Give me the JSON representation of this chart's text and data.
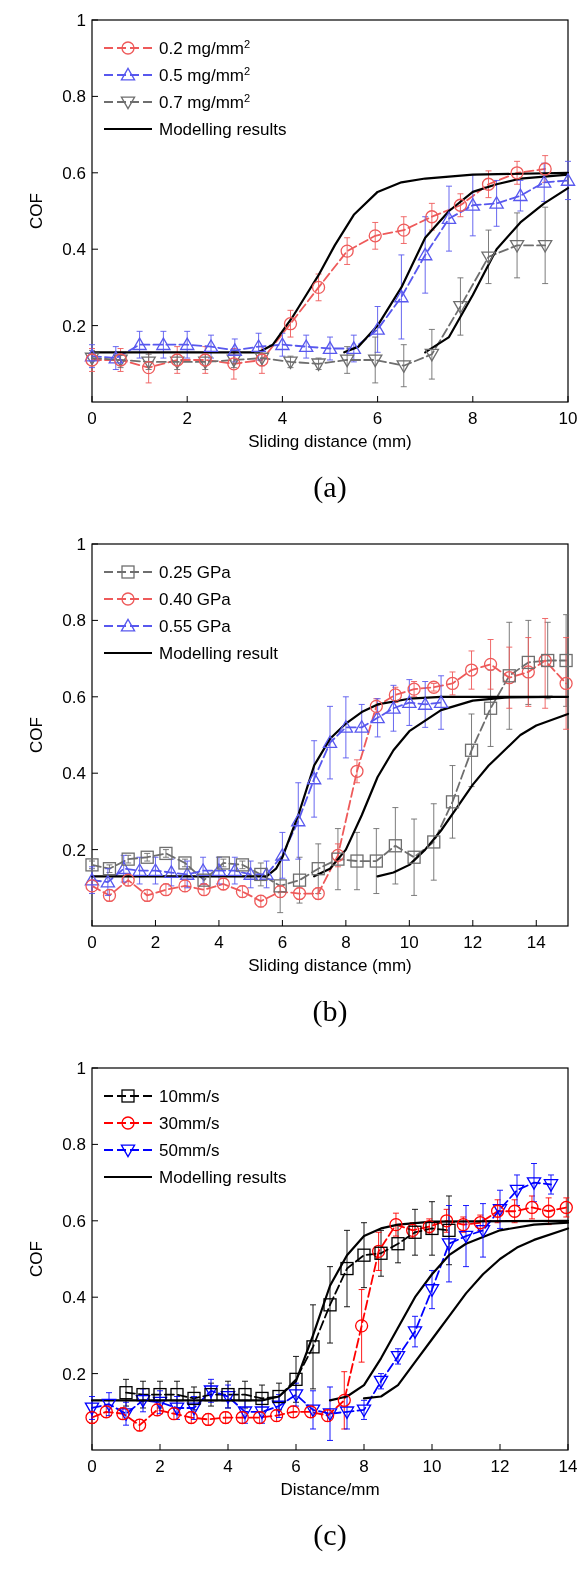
{
  "chart_data": [
    {
      "type": "line",
      "xlabel": "Sliding distance (mm)",
      "ylabel": "COF",
      "xlim": [
        0,
        10
      ],
      "ylim": [
        0,
        1
      ],
      "xticks": [
        0,
        2,
        4,
        6,
        8,
        10
      ],
      "yticks": [
        0.2,
        0.4,
        0.6,
        0.8,
        1.0
      ],
      "legend": "top left",
      "annotations": [
        "(a)"
      ],
      "series": [
        {
          "name": "0.2 mg/mm$^{2}$",
          "color": "#ee5a5a",
          "marker": "circle",
          "line_style": "dashed",
          "x": [
            0,
            0.6,
            1.19,
            1.79,
            2.38,
            2.98,
            3.57,
            4.17,
            4.76,
            5.36,
            5.95,
            6.55,
            7.14,
            7.74,
            8.33,
            8.93,
            9.52
          ],
          "values": [
            0.11,
            0.11,
            0.09,
            0.11,
            0.11,
            0.1,
            0.11,
            0.205,
            0.3,
            0.395,
            0.435,
            0.45,
            0.485,
            0.515,
            0.57,
            0.6,
            0.61
          ],
          "errors": [
            0.03,
            0.03,
            0.04,
            0.035,
            0.035,
            0.04,
            0.035,
            0.035,
            0.035,
            0.035,
            0.035,
            0.035,
            0.035,
            0.03,
            0.035,
            0.03,
            0.035
          ]
        },
        {
          "name": "0.5 mg/mm$^{2}$",
          "color": "#5858ee",
          "marker": "triangle",
          "line_style": "dashed",
          "x": [
            0,
            0.5,
            1,
            1.5,
            2,
            2.5,
            3,
            3.5,
            4,
            4.5,
            5,
            5.5,
            6,
            6.5,
            7,
            7.5,
            8,
            8.5,
            9,
            9.5,
            10
          ],
          "values": [
            0.12,
            0.115,
            0.15,
            0.15,
            0.15,
            0.145,
            0.135,
            0.145,
            0.15,
            0.145,
            0.14,
            0.14,
            0.19,
            0.275,
            0.385,
            0.48,
            0.515,
            0.52,
            0.54,
            0.575,
            0.58
          ],
          "errors": [
            0.03,
            0.03,
            0.035,
            0.035,
            0.035,
            0.03,
            0.03,
            0.035,
            0.03,
            0.03,
            0.03,
            0.035,
            0.06,
            0.11,
            0.1,
            0.085,
            0.08,
            0.06,
            0.04,
            0.05,
            0.05
          ]
        },
        {
          "name": "0.7 mg/mm$^{2}$",
          "color": "#6e6e6e",
          "marker": "triangle-down",
          "line_style": "dashed",
          "x": [
            0,
            0.6,
            1.19,
            1.79,
            2.38,
            2.98,
            3.57,
            4.17,
            4.76,
            5.36,
            5.95,
            6.55,
            7.14,
            7.74,
            8.33,
            8.93,
            9.52
          ],
          "values": [
            0.115,
            0.11,
            0.105,
            0.105,
            0.105,
            0.11,
            0.115,
            0.105,
            0.1,
            0.11,
            0.11,
            0.095,
            0.125,
            0.25,
            0.38,
            0.41,
            0.41
          ],
          "errors": [
            0.02,
            0.02,
            0.02,
            0.02,
            0.02,
            0.02,
            0.02,
            0.015,
            0.015,
            0.035,
            0.06,
            0.055,
            0.065,
            0.075,
            0.07,
            0.085,
            0.1
          ]
        },
        {
          "name": "Modelling results",
          "color": "#000000",
          "marker": "none",
          "line_style": "solid",
          "x": [
            0,
            3.5,
            3.8,
            4.2,
            4.5,
            4.75,
            5.1,
            5.5,
            6,
            6.5,
            7,
            8,
            10
          ],
          "values": [
            0.13,
            0.13,
            0.15,
            0.22,
            0.28,
            0.33,
            0.41,
            0.49,
            0.55,
            0.575,
            0.585,
            0.595,
            0.6
          ]
        },
        {
          "color": "#000000",
          "marker": "none",
          "line_style": "solid",
          "x": [
            5.3,
            5.6,
            6,
            6.5,
            7,
            7.5,
            8,
            8.5,
            9,
            10
          ],
          "values": [
            0.13,
            0.145,
            0.2,
            0.3,
            0.43,
            0.5,
            0.55,
            0.57,
            0.585,
            0.595
          ]
        },
        {
          "color": "#000000",
          "marker": "none",
          "line_style": "solid",
          "x": [
            7,
            7.5,
            8,
            8.5,
            9,
            9.5,
            10
          ],
          "values": [
            0.13,
            0.17,
            0.28,
            0.4,
            0.47,
            0.52,
            0.56
          ]
        }
      ]
    },
    {
      "type": "line",
      "xlabel": "Sliding distance (mm)",
      "ylabel": "COF",
      "xlim": [
        0,
        15
      ],
      "ylim": [
        0,
        1
      ],
      "xticks": [
        0,
        2,
        4,
        6,
        8,
        10,
        12,
        14
      ],
      "yticks": [
        0.2,
        0.4,
        0.6,
        0.8,
        1.0
      ],
      "legend": "top left",
      "annotations": [
        "(b)"
      ],
      "series": [
        {
          "name": "0.25 GPa",
          "color": "#6e6e6e",
          "marker": "square",
          "line_style": "dashed",
          "x": [
            0,
            0.55,
            1.14,
            1.74,
            2.33,
            2.93,
            3.53,
            4.14,
            4.74,
            5.32,
            5.93,
            6.54,
            7.13,
            7.75,
            8.35,
            8.96,
            9.56,
            10.15,
            10.77,
            11.36,
            11.96,
            12.56,
            13.15,
            13.75,
            14.36,
            14.94
          ],
          "values": [
            0.16,
            0.15,
            0.175,
            0.18,
            0.19,
            0.165,
            0.12,
            0.165,
            0.16,
            0.135,
            0.105,
            0.12,
            0.15,
            0.175,
            0.17,
            0.17,
            0.21,
            0.18,
            0.22,
            0.325,
            0.46,
            0.57,
            0.655,
            0.69,
            0.695,
            0.695
          ],
          "errors": [
            0.01,
            0.01,
            0.01,
            0.01,
            0.01,
            0.01,
            0.01,
            0.01,
            0.01,
            0.03,
            0.07,
            0.06,
            0.065,
            0.08,
            0.075,
            0.085,
            0.1,
            0.1,
            0.1,
            0.095,
            0.095,
            0.1,
            0.14,
            0.11,
            0.1,
            0.12
          ]
        },
        {
          "name": "0.40 GPa",
          "color": "#ee5a5a",
          "marker": "circle",
          "line_style": "dashed",
          "x": [
            0,
            0.55,
            1.14,
            1.74,
            2.33,
            2.93,
            3.53,
            4.14,
            4.74,
            5.32,
            5.93,
            6.54,
            7.13,
            7.75,
            8.35,
            8.96,
            9.56,
            10.15,
            10.77,
            11.36,
            11.96,
            12.56,
            13.15,
            13.75,
            14.28,
            14.94
          ],
          "values": [
            0.105,
            0.08,
            0.12,
            0.08,
            0.095,
            0.105,
            0.095,
            0.11,
            0.09,
            0.065,
            0.09,
            0.085,
            0.085,
            0.185,
            0.405,
            0.575,
            0.605,
            0.62,
            0.625,
            0.635,
            0.67,
            0.685,
            0.65,
            0.665,
            0.695,
            0.635
          ],
          "errors": [
            0.015,
            0.015,
            0.015,
            0.015,
            0.015,
            0.015,
            0.015,
            0.015,
            0.015,
            0.015,
            0.015,
            0.015,
            0.015,
            0.03,
            0.03,
            0.02,
            0.02,
            0.02,
            0.01,
            0.03,
            0.05,
            0.065,
            0.08,
            0.09,
            [
              0.57,
              0.805
            ],
            0.12
          ]
        },
        {
          "name": "0.55 GPa",
          "color": "#5858ee",
          "marker": "triangle",
          "line_style": "dashed",
          "x": [
            0,
            0.5,
            1,
            1.5,
            2,
            2.5,
            3,
            3.5,
            4,
            4.5,
            5,
            5.5,
            6,
            6.5,
            7,
            7.5,
            8,
            8.5,
            9,
            9.5,
            10,
            10.5,
            11
          ],
          "values": [
            0.12,
            0.115,
            0.15,
            0.145,
            0.145,
            0.14,
            0.135,
            0.145,
            0.145,
            0.145,
            0.135,
            0.135,
            0.185,
            0.275,
            0.385,
            0.48,
            0.52,
            0.52,
            0.545,
            0.57,
            0.585,
            0.58,
            0.585
          ],
          "errors": [
            0.035,
            0.035,
            0.035,
            0.035,
            0.035,
            0.035,
            0.035,
            0.035,
            0.035,
            0.035,
            0.035,
            0.035,
            0.06,
            0.1,
            0.1,
            0.095,
            0.08,
            0.06,
            0.05,
            0.06,
            0.06,
            0.06,
            0.07
          ]
        },
        {
          "name": "Modelling result",
          "color": "#000000",
          "marker": "none",
          "line_style": "solid",
          "x": [
            0,
            5.5,
            5.8,
            6,
            6.5,
            7,
            7.5,
            8,
            8.5,
            9,
            10,
            11,
            15
          ],
          "values": [
            0.13,
            0.13,
            0.15,
            0.18,
            0.29,
            0.42,
            0.49,
            0.53,
            0.56,
            0.58,
            0.595,
            0.6,
            0.6
          ]
        },
        {
          "color": "#000000",
          "marker": "none",
          "line_style": "solid",
          "x": [
            7,
            7.5,
            8,
            8.5,
            9,
            9.5,
            10,
            11,
            12,
            13,
            14.5
          ],
          "values": [
            0.13,
            0.15,
            0.2,
            0.29,
            0.39,
            0.46,
            0.51,
            0.565,
            0.59,
            0.598,
            0.6
          ]
        },
        {
          "color": "#000000",
          "marker": "none",
          "line_style": "solid",
          "x": [
            9,
            9.5,
            10,
            10.5,
            11,
            11.5,
            12,
            12.5,
            13,
            13.5,
            14,
            15
          ],
          "values": [
            0.13,
            0.14,
            0.16,
            0.2,
            0.25,
            0.31,
            0.37,
            0.42,
            0.46,
            0.5,
            0.525,
            0.555
          ]
        }
      ]
    },
    {
      "type": "line",
      "xlabel": "Distance/mm",
      "ylabel": "COF",
      "xlim": [
        0,
        14
      ],
      "ylim": [
        0,
        1
      ],
      "xticks": [
        0,
        2,
        4,
        6,
        8,
        10,
        12,
        14
      ],
      "yticks": [
        0.2,
        0.4,
        0.6,
        0.8,
        1.0
      ],
      "legend": "top left",
      "annotations": [
        "(c)"
      ],
      "series": [
        {
          "name": "10mm/s",
          "color": "#000000",
          "marker": "square",
          "line_style": "dashed",
          "x": [
            1,
            1.5,
            2,
            2.5,
            3,
            3.5,
            4,
            4.5,
            5,
            5.5,
            6,
            6.5,
            7,
            7.5,
            8,
            8.5,
            9,
            9.5,
            10,
            10.5
          ],
          "values": [
            0.15,
            0.145,
            0.145,
            0.145,
            0.135,
            0.145,
            0.145,
            0.145,
            0.135,
            0.14,
            0.185,
            0.27,
            0.38,
            0.475,
            0.51,
            0.515,
            0.54,
            0.57,
            0.58,
            0.575
          ],
          "errors": [
            0.035,
            0.035,
            0.035,
            0.035,
            0.03,
            0.03,
            0.035,
            0.035,
            0.035,
            0.035,
            0.06,
            0.11,
            0.1,
            0.1,
            0.085,
            0.06,
            0.05,
            0.06,
            0.07,
            0.09
          ]
        },
        {
          "name": "30mm/s",
          "color": "#ff0000",
          "marker": "circle",
          "line_style": "dashed",
          "x": [
            0,
            0.42,
            0.91,
            1.4,
            1.92,
            2.41,
            2.92,
            3.42,
            3.93,
            4.42,
            4.93,
            5.43,
            5.92,
            6.43,
            6.93,
            7.42,
            7.93,
            8.43,
            8.94,
            9.43,
            9.92,
            10.43,
            10.92,
            11.42,
            11.93,
            12.43,
            12.94,
            13.43,
            13.95
          ],
          "values": [
            0.085,
            0.1,
            0.095,
            0.065,
            0.105,
            0.095,
            0.085,
            0.08,
            0.085,
            0.085,
            0.085,
            0.09,
            0.1,
            0.1,
            0.09,
            0.13,
            0.325,
            0.52,
            0.59,
            0.575,
            0.585,
            0.6,
            0.59,
            0.595,
            0.625,
            0.625,
            0.635,
            0.625,
            0.635
          ],
          "errors": [
            0.015,
            0.015,
            0.015,
            0.015,
            0.015,
            0.015,
            0.015,
            0.015,
            0.015,
            0.015,
            0.015,
            0.015,
            0.015,
            0.015,
            0.015,
            0.075,
            0.095,
            0.05,
            0.03,
            0.02,
            0.02,
            0.03,
            0.02,
            0.02,
            0.03,
            0.03,
            0.03,
            0.035,
            0.025
          ]
        },
        {
          "name": "50mm/s",
          "color": "#0000ff",
          "marker": "triangle-down",
          "line_style": "dashed",
          "x": [
            0,
            0.5,
            1,
            1.5,
            2,
            2.5,
            3,
            3.5,
            4,
            4.5,
            5,
            5.5,
            6,
            6.5,
            7,
            7.5,
            8,
            8.5,
            9,
            9.5,
            10,
            10.5,
            11,
            11.5,
            12,
            12.5,
            13,
            13.5
          ],
          "values": [
            0.11,
            0.12,
            0.095,
            0.13,
            0.125,
            0.11,
            0.11,
            0.155,
            0.14,
            0.1,
            0.1,
            0.115,
            0.145,
            0.105,
            0.095,
            0.1,
            0.105,
            0.18,
            0.245,
            0.31,
            0.42,
            0.54,
            0.56,
            0.575,
            0.63,
            0.68,
            0.7,
            0.695
          ],
          "errors": [
            0.03,
            0.03,
            0.03,
            0.03,
            0.03,
            0.03,
            0.03,
            0.03,
            0.03,
            0.03,
            0.03,
            0.03,
            0.03,
            0.05,
            0.07,
            0.045,
            0.025,
            0.02,
            0.02,
            0.04,
            0.05,
            0.1,
            0.08,
            0.07,
            0.05,
            0.04,
            0.05,
            0.025
          ]
        },
        {
          "name": "Modelling results",
          "color": "#000000",
          "marker": "none",
          "line_style": "solid",
          "x": [
            0,
            5,
            5.5,
            6,
            6.5,
            7,
            7.5,
            8,
            8.5,
            9,
            10,
            14
          ],
          "values": [
            0.13,
            0.13,
            0.14,
            0.18,
            0.3,
            0.43,
            0.51,
            0.56,
            0.58,
            0.59,
            0.598,
            0.6
          ]
        },
        {
          "color": "#000000",
          "marker": "none",
          "line_style": "solid",
          "x": [
            7,
            7.5,
            8,
            8.5,
            9,
            9.5,
            10,
            10.5,
            11,
            12,
            13,
            14
          ],
          "values": [
            0.13,
            0.14,
            0.17,
            0.24,
            0.32,
            0.4,
            0.46,
            0.51,
            0.54,
            0.575,
            0.59,
            0.595
          ]
        },
        {
          "color": "#000000",
          "marker": "none",
          "line_style": "solid",
          "x": [
            8,
            8.5,
            9,
            9.5,
            10,
            10.5,
            11,
            11.5,
            12,
            12.5,
            13,
            14
          ],
          "values": [
            0.135,
            0.14,
            0.17,
            0.23,
            0.29,
            0.35,
            0.41,
            0.46,
            0.5,
            0.53,
            0.55,
            0.58
          ]
        }
      ]
    }
  ]
}
